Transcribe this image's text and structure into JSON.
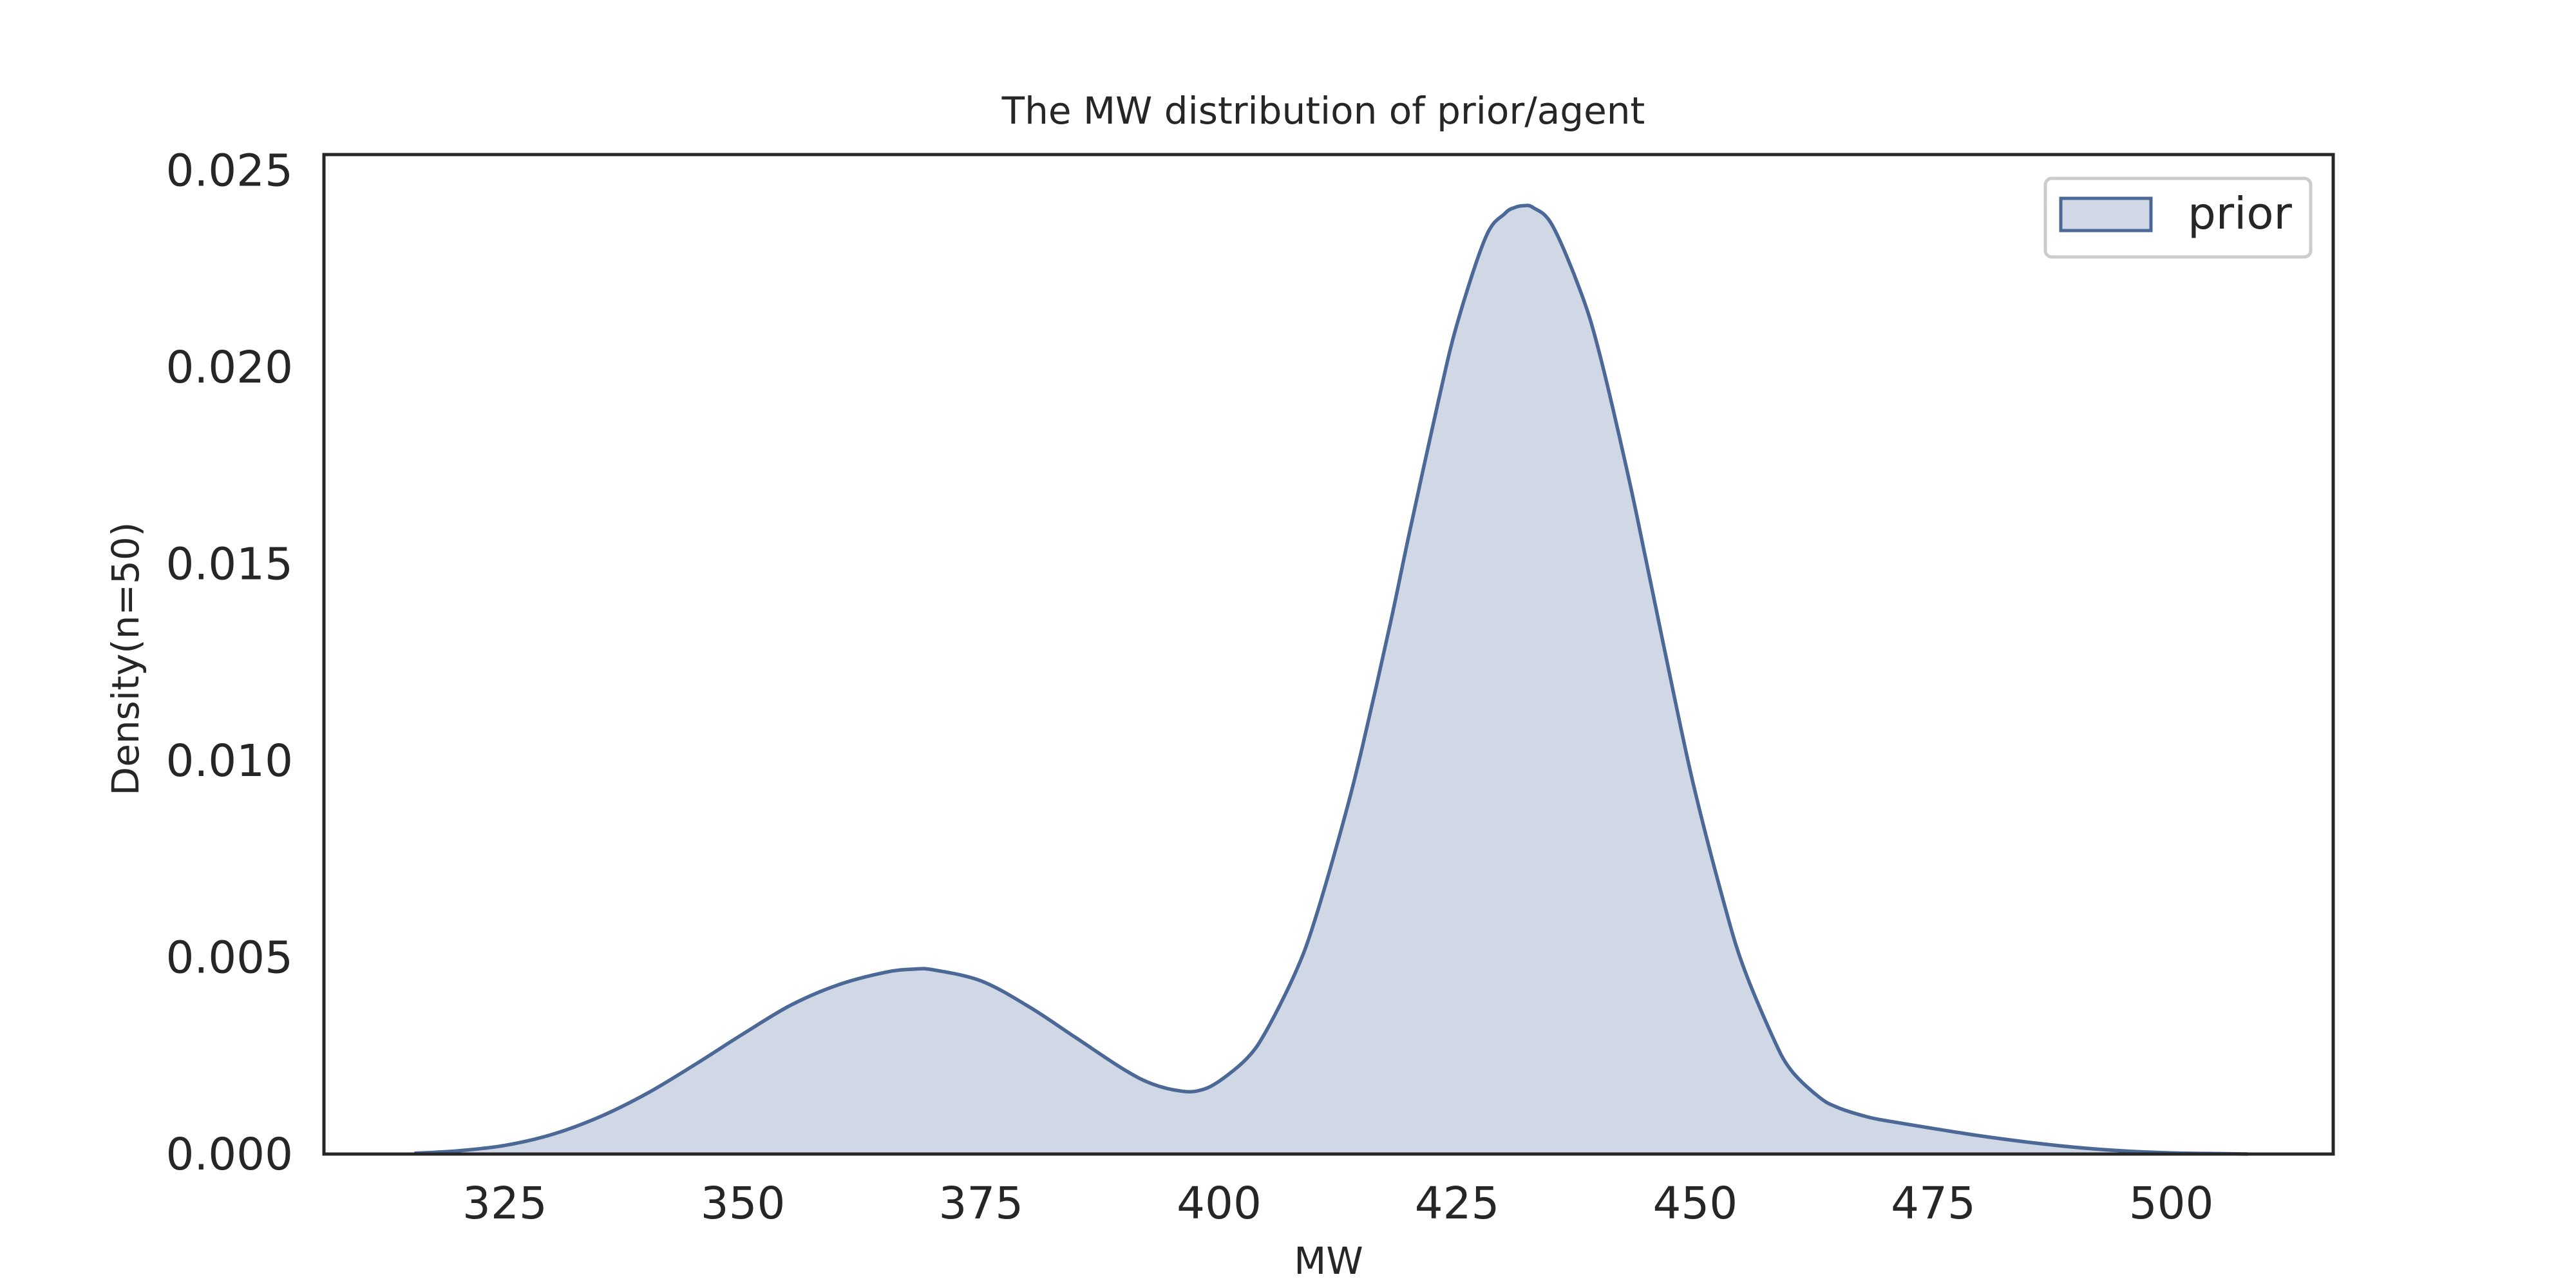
{
  "chart_data": {
    "type": "area",
    "title": "The MW distribution of prior/agent",
    "xlabel": "MW",
    "ylabel": "Density(n=50)",
    "xlim": [
      306,
      517
    ],
    "ylim": [
      0,
      0.0254
    ],
    "xticks": [
      325,
      350,
      375,
      400,
      425,
      450,
      475,
      500
    ],
    "xtick_labels": [
      "325",
      "350",
      "375",
      "400",
      "425",
      "450",
      "475",
      "500"
    ],
    "yticks": [
      0.0,
      0.005,
      0.01,
      0.015,
      0.02,
      0.025
    ],
    "ytick_labels": [
      "0.000",
      "0.005",
      "0.010",
      "0.015",
      "0.020",
      "0.025"
    ],
    "grid": false,
    "legend": {
      "position": "upper right",
      "entries": [
        "prior"
      ]
    },
    "series": [
      {
        "name": "prior",
        "line_color": "#4c6896",
        "fill_color": "#d1d8e5",
        "x": [
          315.5,
          320,
          325,
          330,
          335,
          340,
          345,
          350,
          355,
          360,
          365,
          368,
          370,
          375,
          380,
          385,
          390,
          393,
          396,
          398,
          400,
          403,
          405,
          408,
          410,
          413,
          415,
          418,
          420,
          423,
          425,
          428,
          430,
          431,
          432,
          433,
          435,
          438,
          440,
          443,
          445,
          448,
          450,
          453,
          455,
          458,
          460,
          463,
          465,
          468,
          470,
          475,
          480,
          485,
          490,
          495,
          500,
          505,
          508
        ],
        "y": [
          2e-05,
          8e-05,
          0.00022,
          0.0005,
          0.00095,
          0.00155,
          0.00228,
          0.00305,
          0.00378,
          0.0043,
          0.00462,
          0.0047,
          0.00468,
          0.0044,
          0.00375,
          0.00295,
          0.00215,
          0.00178,
          0.0016,
          0.00162,
          0.00185,
          0.00245,
          0.00315,
          0.0046,
          0.0059,
          0.0084,
          0.0103,
          0.0135,
          0.0158,
          0.0191,
          0.0211,
          0.0233,
          0.0239,
          0.02405,
          0.0241,
          0.02405,
          0.0236,
          0.0219,
          0.0203,
          0.0172,
          0.0149,
          0.0114,
          0.0092,
          0.0064,
          0.0048,
          0.00305,
          0.00215,
          0.00145,
          0.00118,
          0.00095,
          0.00085,
          0.00065,
          0.00046,
          0.0003,
          0.00017,
          8e-05,
          3e-05,
          1e-05,
          0.0
        ]
      }
    ]
  }
}
